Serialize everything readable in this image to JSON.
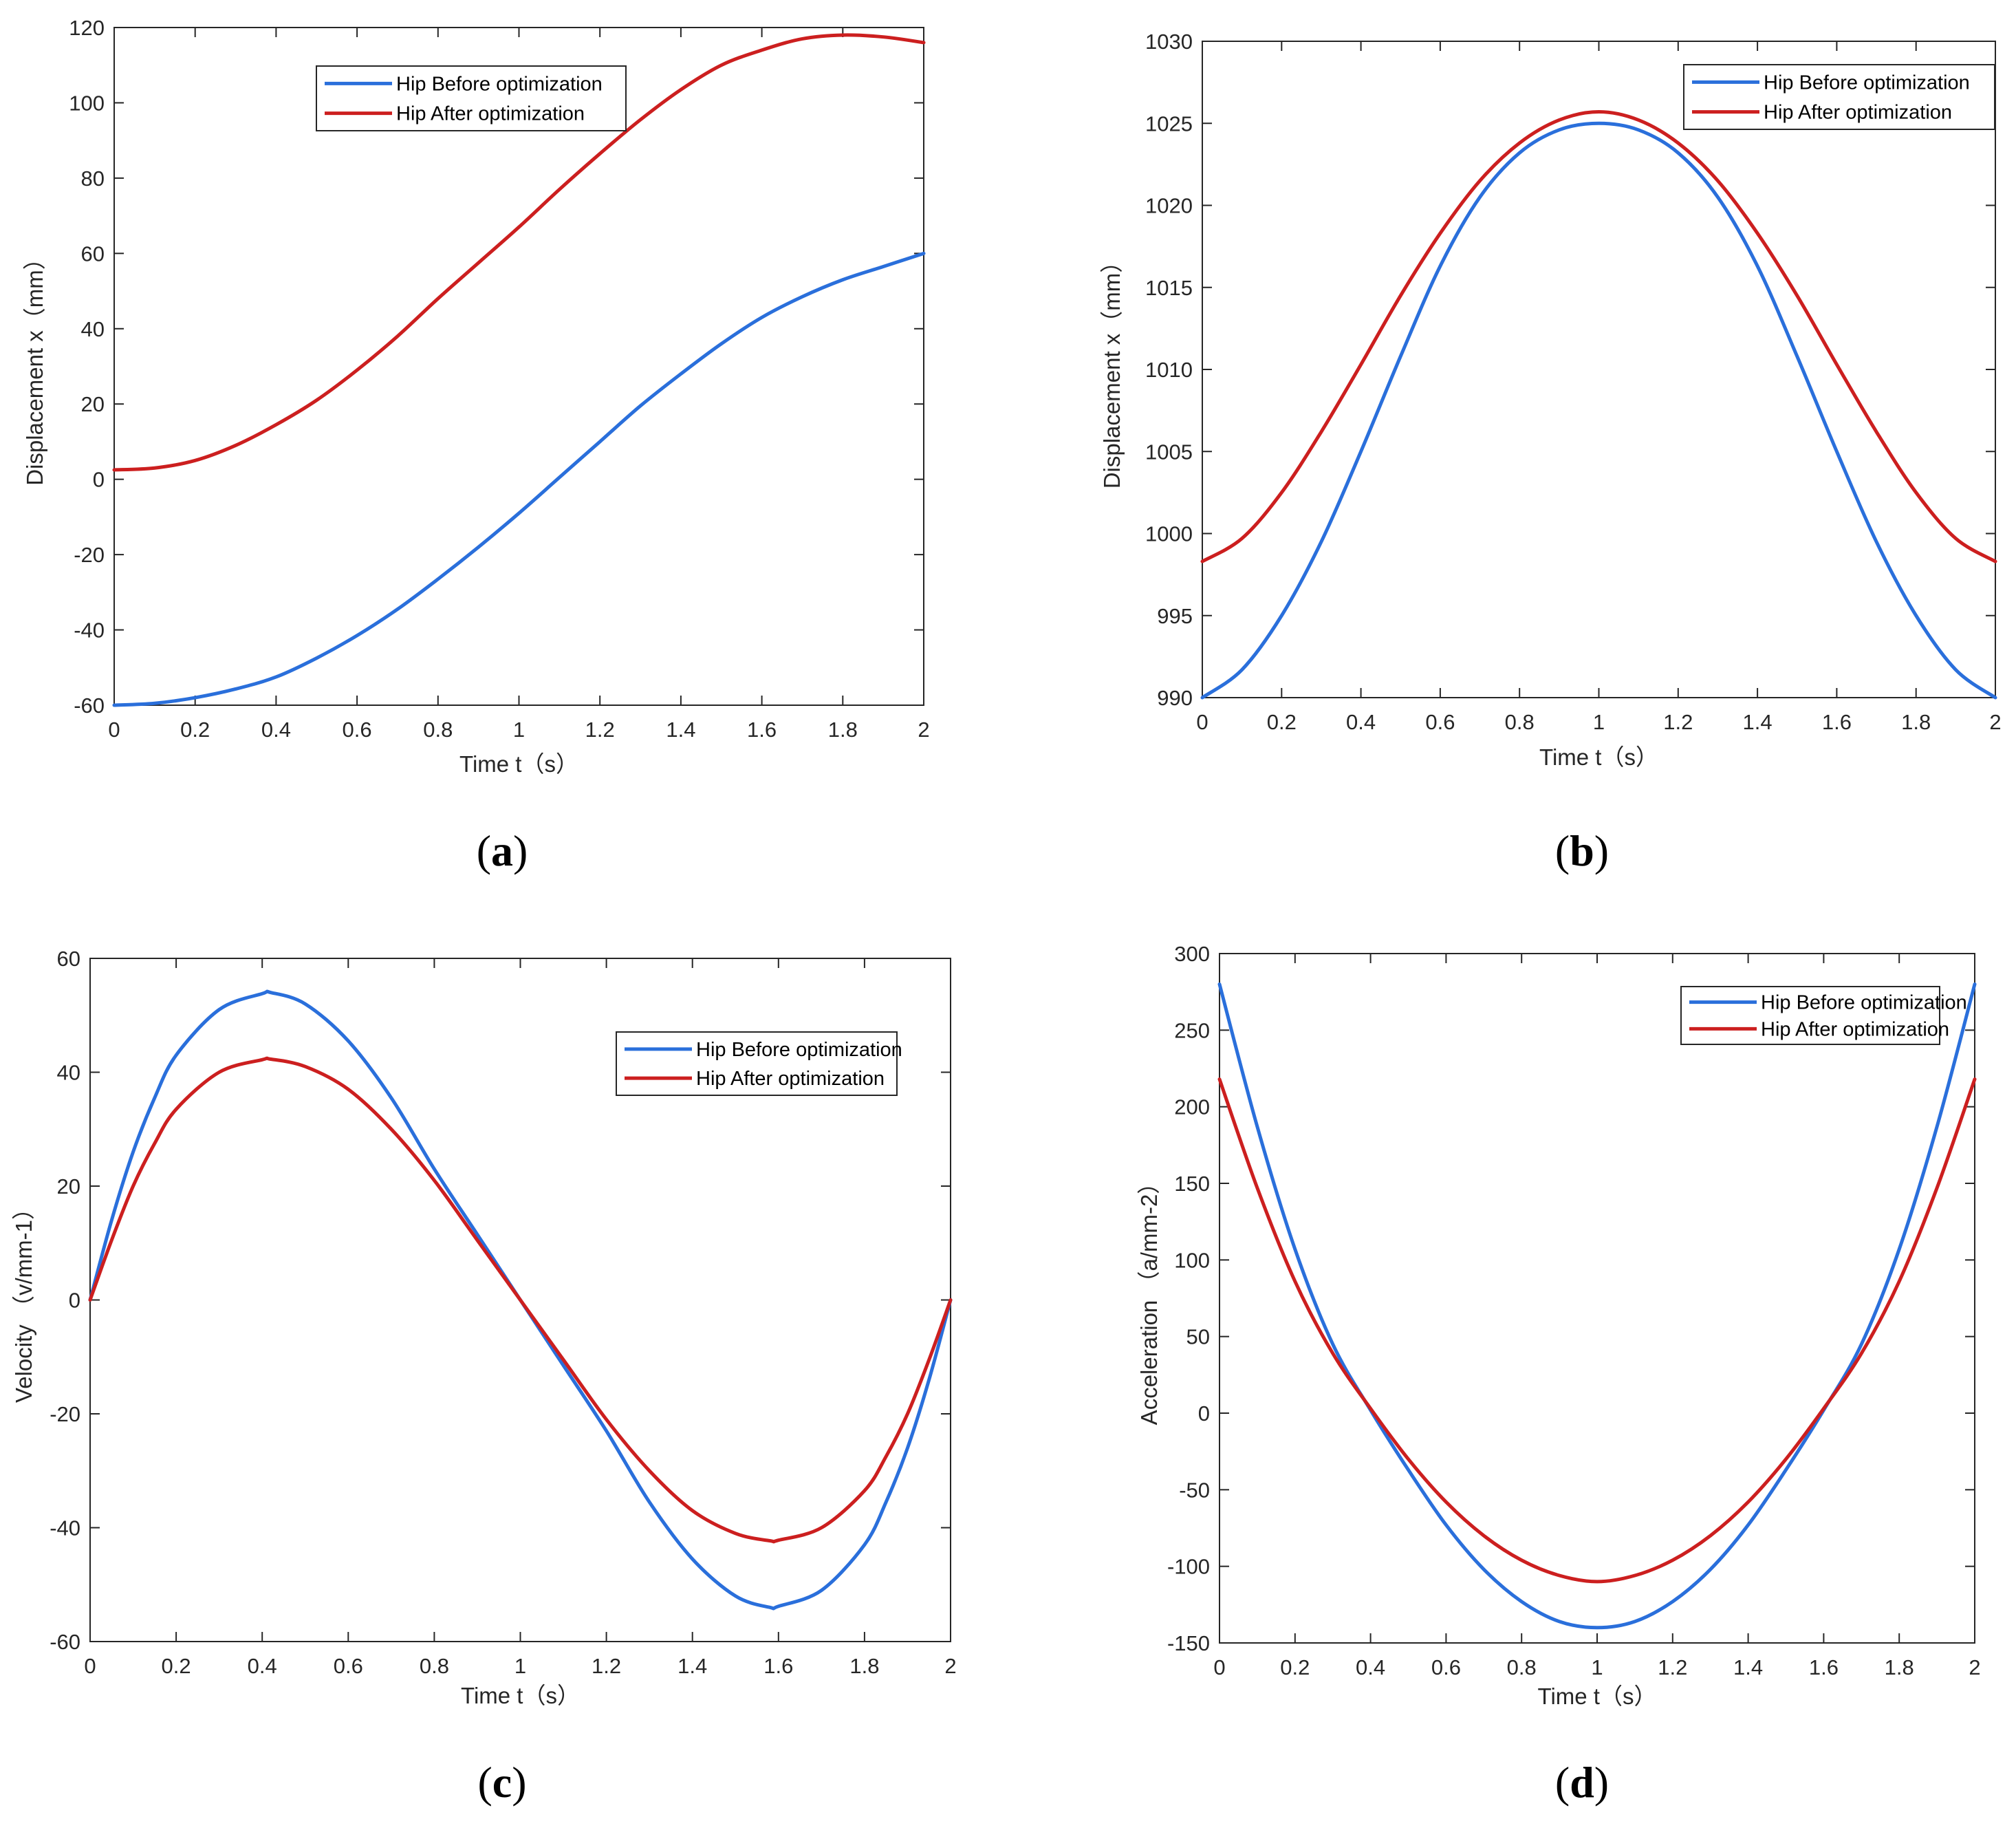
{
  "colors": {
    "before": "#2a6fdb",
    "after": "#cc1f1f",
    "axis": "#262626"
  },
  "chart_data": [
    {
      "id": "a",
      "type": "line",
      "panel_label": "a",
      "xlabel": "Time t（s）",
      "ylabel": "Displacement x（mm）",
      "xlim": [
        0,
        2
      ],
      "ylim": [
        -60,
        120
      ],
      "xticks": [
        0,
        0.2,
        0.4,
        0.6,
        0.8,
        1,
        1.2,
        1.4,
        1.6,
        1.8,
        2
      ],
      "xtick_labels": [
        "0",
        "0.2",
        "0.4",
        "0.6",
        "0.8",
        "1",
        "1.2",
        "1.4",
        "1.6",
        "1.8",
        "2"
      ],
      "yticks": [
        -60,
        -40,
        -20,
        0,
        20,
        40,
        60,
        80,
        100,
        120
      ],
      "ytick_labels": [
        "-60",
        "-40",
        "-20",
        "0",
        "20",
        "40",
        "60",
        "80",
        "100",
        "120"
      ],
      "legend": {
        "location": "top-center"
      },
      "grid": false,
      "series": [
        {
          "name": "Hip Before optimization",
          "color": "#2a6fdb",
          "x": [
            0,
            0.1,
            0.2,
            0.3,
            0.4,
            0.5,
            0.6,
            0.7,
            0.8,
            0.9,
            1.0,
            1.1,
            1.2,
            1.3,
            1.4,
            1.5,
            1.6,
            1.7,
            1.8,
            1.9,
            2.0
          ],
          "y": [
            -60,
            -59.5,
            -58,
            -55.7,
            -52.5,
            -47.5,
            -41.5,
            -34.5,
            -26.5,
            -18,
            -9,
            0.5,
            10,
            19.5,
            28,
            36,
            43,
            48.5,
            53,
            56.5,
            60
          ]
        },
        {
          "name": "Hip After optimization",
          "color": "#cc1f1f",
          "x": [
            0,
            0.1,
            0.2,
            0.3,
            0.4,
            0.5,
            0.6,
            0.7,
            0.8,
            0.9,
            1.0,
            1.1,
            1.2,
            1.3,
            1.4,
            1.5,
            1.6,
            1.7,
            1.8,
            1.9,
            2.0
          ],
          "y": [
            2.5,
            3,
            5,
            9,
            14.5,
            21,
            29,
            38,
            48,
            57.5,
            67,
            77,
            86.5,
            95.5,
            103.5,
            110,
            114,
            117,
            118,
            117.5,
            116
          ]
        }
      ]
    },
    {
      "id": "b",
      "type": "line",
      "panel_label": "b",
      "xlabel": "Time t（s）",
      "ylabel": "Displacement x（mm）",
      "xlim": [
        0,
        2
      ],
      "ylim": [
        990,
        1030
      ],
      "xticks": [
        0,
        0.2,
        0.4,
        0.6,
        0.8,
        1,
        1.2,
        1.4,
        1.6,
        1.8,
        2
      ],
      "xtick_labels": [
        "0",
        "0.2",
        "0.4",
        "0.6",
        "0.8",
        "1",
        "1.2",
        "1.4",
        "1.6",
        "1.8",
        "2"
      ],
      "yticks": [
        990,
        995,
        1000,
        1005,
        1010,
        1015,
        1020,
        1025,
        1030
      ],
      "ytick_labels": [
        "990",
        "995",
        "1000",
        "1005",
        "1010",
        "1015",
        "1020",
        "1025",
        "1030"
      ],
      "legend": {
        "location": "top-right"
      },
      "grid": false,
      "series": [
        {
          "name": "Hip Before optimization",
          "color": "#2a6fdb",
          "x": [
            0,
            0.1,
            0.2,
            0.3,
            0.4,
            0.5,
            0.6,
            0.7,
            0.8,
            0.9,
            1.0,
            1.1,
            1.2,
            1.3,
            1.4,
            1.5,
            1.6,
            1.7,
            1.8,
            1.9,
            2.0
          ],
          "y": [
            990,
            991.7,
            995,
            999.5,
            1005,
            1010.8,
            1016.3,
            1020.5,
            1023.2,
            1024.6,
            1025,
            1024.6,
            1023.2,
            1020.5,
            1016.3,
            1010.8,
            1005,
            999.5,
            995,
            991.7,
            990
          ]
        },
        {
          "name": "Hip After optimization",
          "color": "#cc1f1f",
          "x": [
            0,
            0.1,
            0.2,
            0.3,
            0.4,
            0.5,
            0.6,
            0.7,
            0.8,
            0.9,
            1.0,
            1.1,
            1.2,
            1.3,
            1.4,
            1.5,
            1.6,
            1.7,
            1.8,
            1.9,
            2.0
          ],
          "y": [
            998.3,
            999.7,
            1002.5,
            1006.2,
            1010.3,
            1014.5,
            1018.3,
            1021.5,
            1023.8,
            1025.2,
            1025.7,
            1025.2,
            1023.8,
            1021.5,
            1018.3,
            1014.5,
            1010.3,
            1006.2,
            1002.5,
            999.7,
            998.3
          ]
        }
      ]
    },
    {
      "id": "c",
      "type": "line",
      "panel_label": "c",
      "xlabel": "Time t（s）",
      "ylabel": "Velocity （v/mm-1）",
      "xlim": [
        0,
        2
      ],
      "ylim": [
        -60,
        60
      ],
      "xticks": [
        0,
        0.2,
        0.4,
        0.6,
        0.8,
        1,
        1.2,
        1.4,
        1.6,
        1.8,
        2
      ],
      "xtick_labels": [
        "0",
        "0.2",
        "0.4",
        "0.6",
        "0.8",
        "1",
        "1.2",
        "1.4",
        "1.6",
        "1.8",
        "2"
      ],
      "yticks": [
        -60,
        -40,
        -20,
        0,
        20,
        40,
        60
      ],
      "ytick_labels": [
        "-60",
        "-40",
        "-20",
        "0",
        "20",
        "40",
        "60"
      ],
      "legend": {
        "location": "top-right"
      },
      "grid": false,
      "series": [
        {
          "name": "Hip Before optimization",
          "color": "#2a6fdb",
          "x": [
            0,
            0.05,
            0.1,
            0.15,
            0.2,
            0.3,
            0.4,
            0.42,
            0.5,
            0.6,
            0.7,
            0.8,
            0.9,
            1.0,
            1.1,
            1.2,
            1.3,
            1.4,
            1.5,
            1.58,
            1.6,
            1.7,
            1.8,
            1.85,
            1.9,
            1.95,
            2.0
          ],
          "y": [
            0,
            14,
            26,
            35.5,
            43,
            51,
            53.8,
            54,
            52,
            45.5,
            35.5,
            23,
            11.5,
            0,
            -11.5,
            -23,
            -35.5,
            -45.5,
            -52,
            -54,
            -53.8,
            -51,
            -43,
            -35.5,
            -26,
            -14,
            0
          ]
        },
        {
          "name": "Hip After optimization",
          "color": "#cc1f1f",
          "x": [
            0,
            0.05,
            0.1,
            0.15,
            0.2,
            0.3,
            0.4,
            0.42,
            0.5,
            0.6,
            0.7,
            0.8,
            0.9,
            1.0,
            1.1,
            1.2,
            1.3,
            1.4,
            1.5,
            1.58,
            1.6,
            1.7,
            1.8,
            1.85,
            1.9,
            1.95,
            2.0
          ],
          "y": [
            0,
            10.5,
            20,
            27.5,
            33.5,
            40,
            42.2,
            42.3,
            41,
            37,
            30,
            21,
            10.5,
            0,
            -10.5,
            -21,
            -30,
            -37,
            -41,
            -42.3,
            -42.2,
            -40,
            -33.5,
            -27.5,
            -20,
            -10.5,
            0
          ]
        }
      ]
    },
    {
      "id": "d",
      "type": "line",
      "panel_label": "d",
      "xlabel": "Time t（s）",
      "ylabel": "Acceleration （a/mm-2）",
      "xlim": [
        0,
        2
      ],
      "ylim": [
        -150,
        300
      ],
      "xticks": [
        0,
        0.2,
        0.4,
        0.6,
        0.8,
        1,
        1.2,
        1.4,
        1.6,
        1.8,
        2
      ],
      "xtick_labels": [
        "0",
        "0.2",
        "0.4",
        "0.6",
        "0.8",
        "1",
        "1.2",
        "1.4",
        "1.6",
        "1.8",
        "2"
      ],
      "yticks": [
        -150,
        -100,
        -50,
        0,
        50,
        100,
        150,
        200,
        250,
        300
      ],
      "ytick_labels": [
        "-150",
        "-100",
        "-50",
        "0",
        "50",
        "100",
        "150",
        "200",
        "250",
        "300"
      ],
      "legend": {
        "location": "top-right"
      },
      "grid": false,
      "series": [
        {
          "name": "Hip Before optimization",
          "color": "#2a6fdb",
          "x": [
            0,
            0.1,
            0.2,
            0.3,
            0.4,
            0.5,
            0.6,
            0.7,
            0.8,
            0.9,
            1.0,
            1.1,
            1.2,
            1.3,
            1.4,
            1.5,
            1.6,
            1.7,
            1.8,
            1.9,
            2.0
          ],
          "y": [
            280,
            187,
            107,
            45,
            2,
            -37,
            -73,
            -102,
            -123,
            -136,
            -140,
            -136,
            -123,
            -102,
            -73,
            -37,
            2,
            45,
            107,
            187,
            280
          ]
        },
        {
          "name": "Hip After optimization",
          "color": "#cc1f1f",
          "x": [
            0,
            0.1,
            0.2,
            0.3,
            0.4,
            0.5,
            0.6,
            0.7,
            0.8,
            0.9,
            1.0,
            1.1,
            1.2,
            1.3,
            1.4,
            1.5,
            1.6,
            1.7,
            1.8,
            1.9,
            2.0
          ],
          "y": [
            218,
            147,
            86,
            39,
            3,
            -30,
            -58,
            -80,
            -96,
            -106,
            -110,
            -106,
            -96,
            -80,
            -58,
            -30,
            3,
            39,
            86,
            147,
            218
          ]
        }
      ]
    }
  ]
}
